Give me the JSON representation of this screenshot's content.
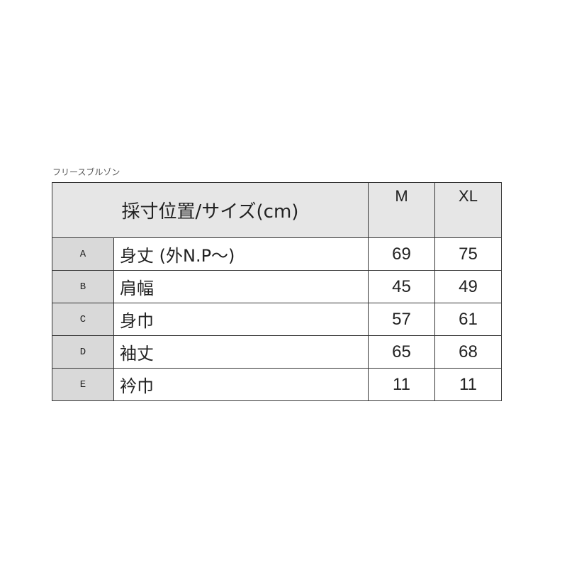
{
  "caption": "フリースブルゾン",
  "header": {
    "label": "採寸位置/サイズ(cm)",
    "sizes": [
      "M",
      "XL"
    ]
  },
  "rows": [
    {
      "letter": "A",
      "name": "身丈 (外N.P〜)",
      "values": [
        "69",
        "75"
      ]
    },
    {
      "letter": "B",
      "name": "肩幅",
      "values": [
        "45",
        "49"
      ]
    },
    {
      "letter": "C",
      "name": "身巾",
      "values": [
        "57",
        "61"
      ]
    },
    {
      "letter": "D",
      "name": "袖丈",
      "values": [
        "65",
        "68"
      ]
    },
    {
      "letter": "E",
      "name": "衿巾",
      "values": [
        "11",
        "11"
      ]
    }
  ]
}
